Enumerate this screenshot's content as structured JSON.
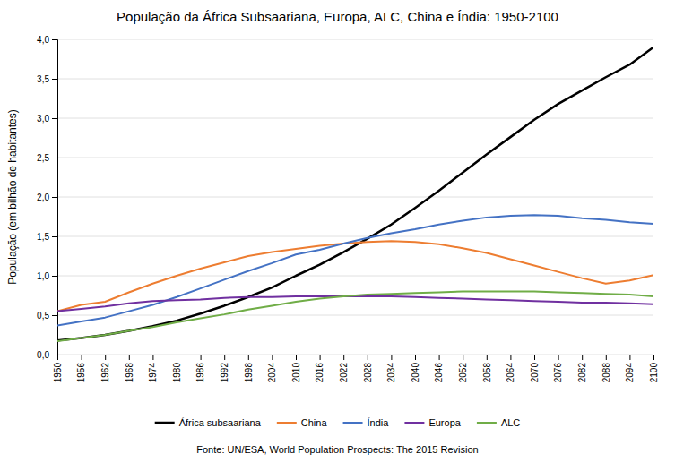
{
  "chart_data": {
    "type": "line",
    "title": "População da África Subsaariana, Europa, ALC, China e Índia: 1950-2100",
    "y_label": "População (em bilhão de habitantes)",
    "annotations": [
      "Fonte: UN/ESA, World Population Prospects: The 2015 Revision"
    ],
    "x": [
      1950,
      1956,
      1962,
      1968,
      1974,
      1980,
      1986,
      1992,
      1998,
      2004,
      2010,
      2016,
      2022,
      2028,
      2034,
      2040,
      2046,
      2052,
      2058,
      2064,
      2070,
      2076,
      2082,
      2088,
      2094,
      2100
    ],
    "series": [
      {
        "name": "África subsaariana",
        "color": "#000000",
        "values": [
          0.18,
          0.21,
          0.25,
          0.3,
          0.36,
          0.43,
          0.52,
          0.62,
          0.73,
          0.85,
          1.0,
          1.14,
          1.3,
          1.47,
          1.65,
          1.86,
          2.08,
          2.31,
          2.54,
          2.76,
          2.98,
          3.18,
          3.35,
          3.52,
          3.68,
          3.9
        ]
      },
      {
        "name": "China",
        "color": "#ED7D31",
        "values": [
          0.55,
          0.63,
          0.67,
          0.79,
          0.9,
          1.0,
          1.09,
          1.17,
          1.25,
          1.3,
          1.34,
          1.38,
          1.41,
          1.43,
          1.44,
          1.43,
          1.4,
          1.35,
          1.29,
          1.21,
          1.13,
          1.05,
          0.97,
          0.9,
          0.94,
          1.01
        ]
      },
      {
        "name": "Índia",
        "color": "#4472C4",
        "values": [
          0.37,
          0.42,
          0.47,
          0.55,
          0.63,
          0.73,
          0.84,
          0.95,
          1.06,
          1.16,
          1.27,
          1.33,
          1.41,
          1.48,
          1.54,
          1.59,
          1.65,
          1.7,
          1.74,
          1.76,
          1.77,
          1.76,
          1.73,
          1.71,
          1.68,
          1.66
        ]
      },
      {
        "name": "Europa",
        "color": "#7030A0",
        "values": [
          0.55,
          0.58,
          0.61,
          0.65,
          0.68,
          0.69,
          0.7,
          0.72,
          0.73,
          0.73,
          0.74,
          0.74,
          0.74,
          0.74,
          0.74,
          0.73,
          0.72,
          0.71,
          0.7,
          0.69,
          0.68,
          0.67,
          0.66,
          0.66,
          0.65,
          0.64
        ]
      },
      {
        "name": "ALC",
        "color": "#70AD47",
        "values": [
          0.17,
          0.21,
          0.25,
          0.3,
          0.35,
          0.41,
          0.46,
          0.51,
          0.57,
          0.62,
          0.67,
          0.71,
          0.74,
          0.76,
          0.77,
          0.78,
          0.79,
          0.8,
          0.8,
          0.8,
          0.8,
          0.79,
          0.78,
          0.77,
          0.76,
          0.74
        ]
      }
    ],
    "xlim": [
      1950,
      2100
    ],
    "xticks": [
      1950,
      1956,
      1962,
      1968,
      1974,
      1980,
      1986,
      1992,
      1998,
      2004,
      2010,
      2016,
      2022,
      2028,
      2034,
      2040,
      2046,
      2052,
      2058,
      2064,
      2070,
      2076,
      2082,
      2088,
      2094,
      2100
    ],
    "ylim": [
      0.0,
      4.0
    ],
    "yticks": [
      {
        "value": 0.0,
        "label": "0,0"
      },
      {
        "value": 0.5,
        "label": "0,5"
      },
      {
        "value": 1.0,
        "label": "1,0"
      },
      {
        "value": 1.5,
        "label": "1,5"
      },
      {
        "value": 2.0,
        "label": "2,0"
      },
      {
        "value": 2.5,
        "label": "2,5"
      },
      {
        "value": 3.0,
        "label": "3,0"
      },
      {
        "value": 3.5,
        "label": "3,5"
      },
      {
        "value": 4.0,
        "label": "4,0"
      }
    ],
    "grid": true,
    "legend": "bottom"
  }
}
